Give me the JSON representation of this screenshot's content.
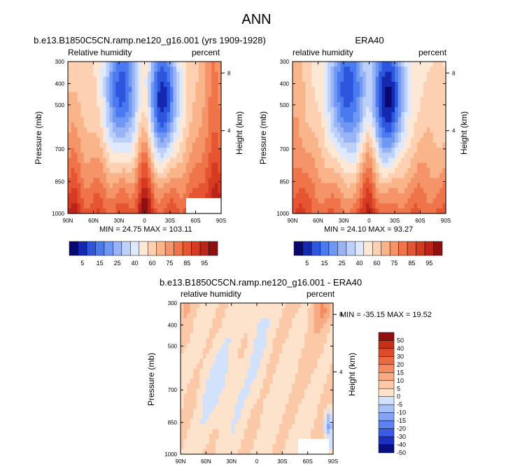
{
  "page_title": "ANN",
  "colors": {
    "scale": [
      "#08086e",
      "#1428b0",
      "#2d55de",
      "#4a7aef",
      "#6f97f4",
      "#98b4f7",
      "#bdd0fa",
      "#dfe9fd",
      "#fde8d6",
      "#fcd0b0",
      "#f9b48a",
      "#f59468",
      "#ef744a",
      "#e65532",
      "#d63b22",
      "#ba2419",
      "#901010"
    ],
    "diff": [
      "#0a0f80",
      "#1e30c0",
      "#3b5be6",
      "#5d80f2",
      "#84a2f6",
      "#a9c1fa",
      "#d2e2fc",
      "#fde3cc",
      "#fbc9a7",
      "#f8aa82",
      "#f48a5f",
      "#ec6a41",
      "#df4b2b",
      "#c63019",
      "#941010"
    ]
  },
  "chart_data": [
    {
      "type": "heatmap",
      "panel": "model",
      "title": "b.e13.B1850C5CN.ramp.ne120_g16.001 (yrs 1909-1928)",
      "left_label": "Relative humidity",
      "right_label": "percent",
      "ylabel": "Pressure (mb)",
      "y2label": "Height (km)",
      "x_ticks": [
        "90N",
        "60N",
        "30N",
        "0",
        "30S",
        "60S",
        "90S"
      ],
      "y_ticks": [
        "300",
        "400",
        "500",
        "700",
        "850",
        "1000"
      ],
      "y2_ticks": [
        "8",
        "4"
      ],
      "stats": "MIN = 24.75   MAX = 103.11"
    },
    {
      "type": "heatmap",
      "panel": "obs",
      "title": "ERA40",
      "left_label": "relative humidity",
      "right_label": "percent",
      "ylabel": "Pressure (mb)",
      "y2label": "Height (km)",
      "x_ticks": [
        "90N",
        "60N",
        "30N",
        "0",
        "30S",
        "60S",
        "90S"
      ],
      "y_ticks": [
        "300",
        "400",
        "500",
        "700",
        "850",
        "1000"
      ],
      "y2_ticks": [
        "8",
        "4"
      ],
      "stats": "MIN = 24.10   MAX = 93.27"
    },
    {
      "type": "heatmap",
      "panel": "difference",
      "title": "b.e13.B1850C5CN.ramp.ne120_g16.001 - ERA40",
      "left_label": "relative humidity",
      "right_label": "percent",
      "ylabel": "Pressure (mb)",
      "y2label": "Height (km)",
      "x_ticks": [
        "90N",
        "60N",
        "30N",
        "0",
        "30S",
        "60S",
        "90S"
      ],
      "y_ticks": [
        "300",
        "400",
        "500",
        "700",
        "850",
        "1000"
      ],
      "y2_ticks": [
        "8",
        "4"
      ],
      "stats": "MIN = -35.15   MAX =  19.52"
    }
  ],
  "colorbar_top": {
    "labels": [
      "5",
      "15",
      "25",
      "40",
      "60",
      "75",
      "85",
      "95"
    ]
  },
  "colorbar_diff": {
    "labels": [
      "50",
      "40",
      "30",
      "20",
      "15",
      "10",
      "5",
      "0",
      "-5",
      "-10",
      "-15",
      "-20",
      "-30",
      "-40",
      "-50"
    ]
  }
}
